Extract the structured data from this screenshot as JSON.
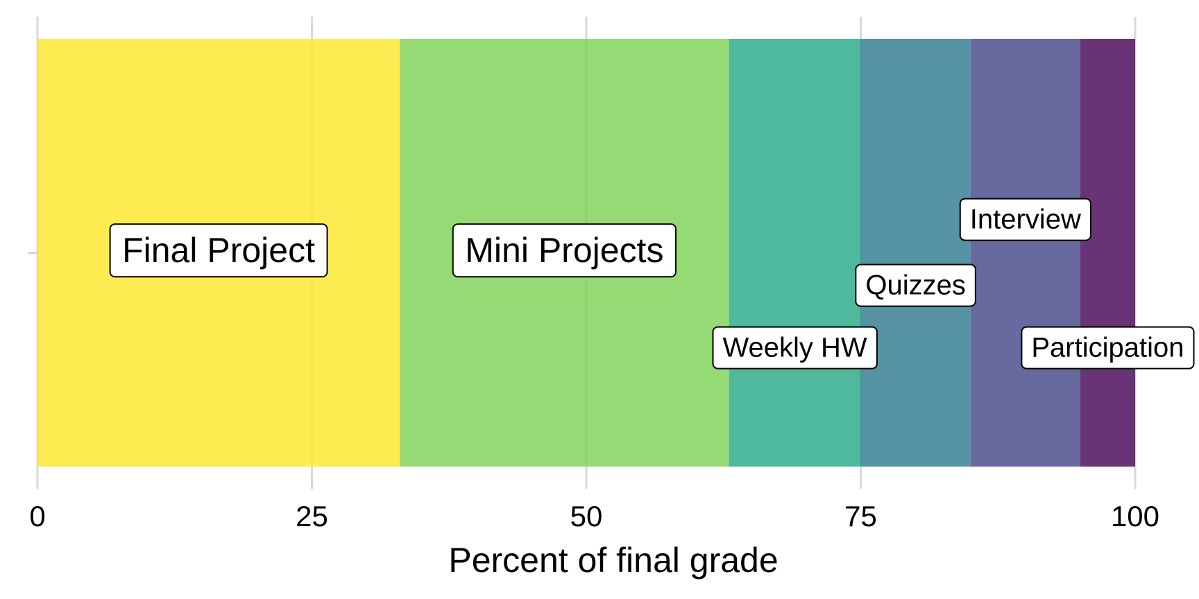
{
  "chart_data": {
    "type": "stacked-bar-horizontal",
    "x_label": "Percent of final grade",
    "series": [
      {
        "name": "Final Project",
        "color": "#fde725",
        "values": [
          33
        ]
      },
      {
        "name": "Mini Projects",
        "color": "#7ad151",
        "values": [
          30
        ]
      },
      {
        "name": "Weekly HW",
        "color": "#22a884",
        "values": [
          12
        ]
      },
      {
        "name": "Quizzes",
        "color": "#2a788e",
        "values": [
          10
        ]
      },
      {
        "name": "Interview",
        "color": "#414487",
        "values": [
          10
        ]
      },
      {
        "name": "Participation",
        "color": "#440154",
        "values": [
          5
        ]
      }
    ],
    "xlim": [
      0,
      100
    ],
    "xticks": [
      0,
      25,
      50,
      75,
      100
    ],
    "grid": true
  }
}
